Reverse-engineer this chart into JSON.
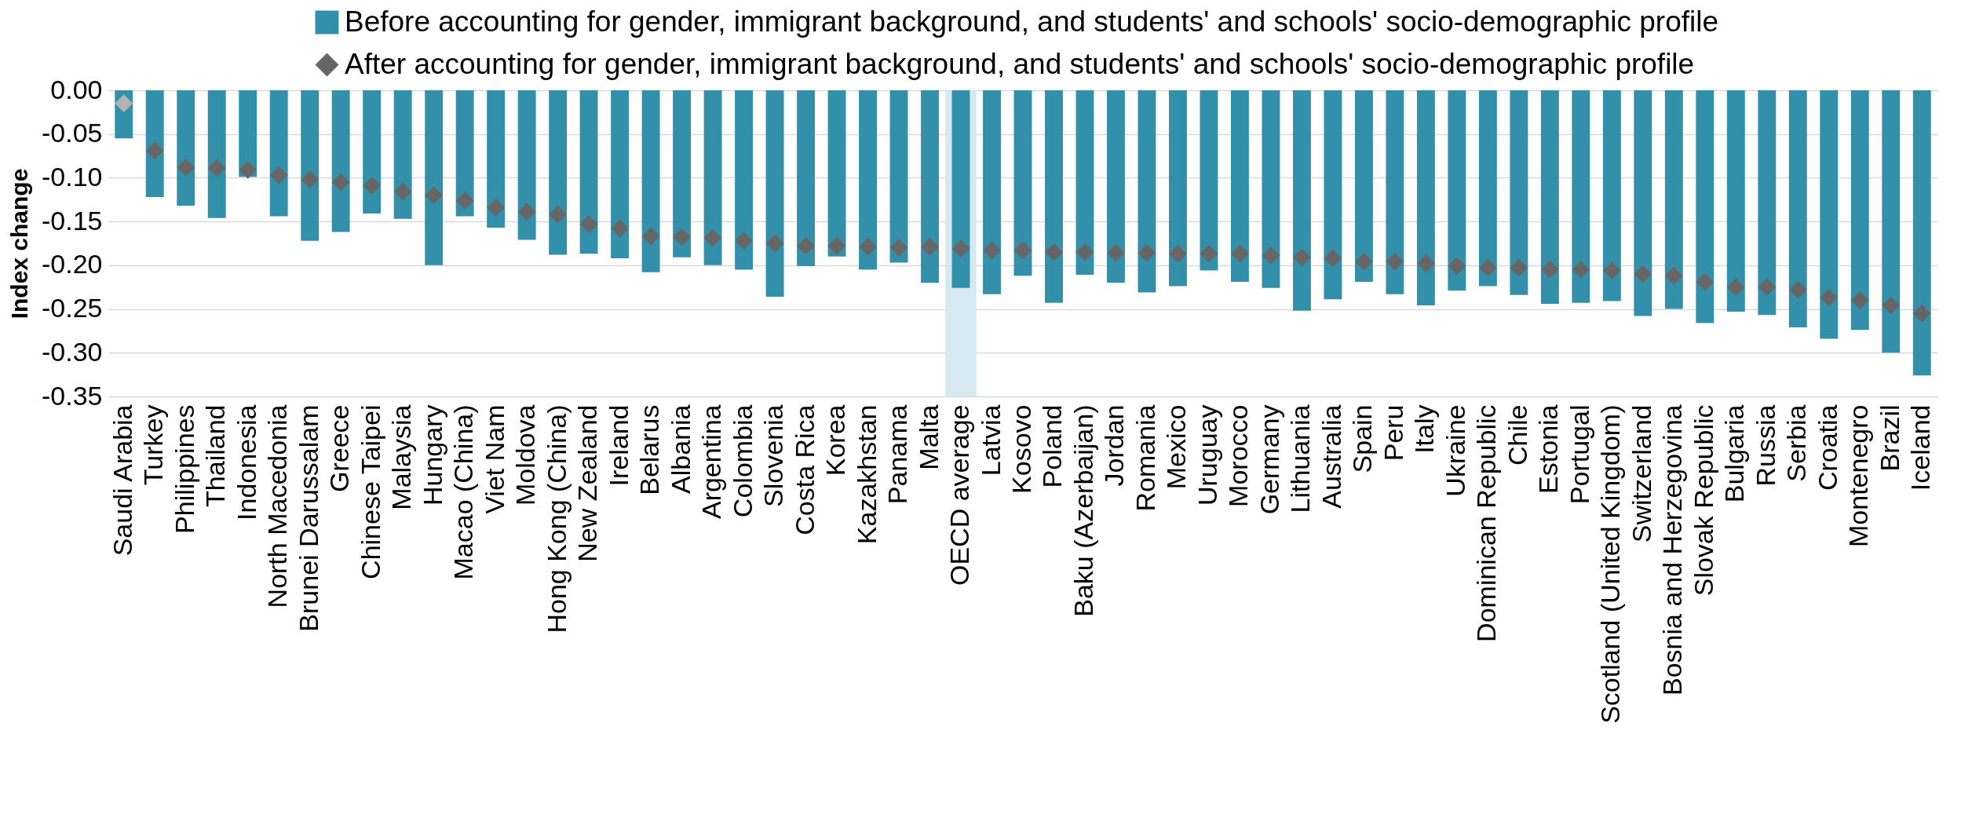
{
  "chart_data": {
    "type": "bar",
    "ylabel": "Index change",
    "categories": [
      "Saudi Arabia",
      "Turkey",
      "Philippines",
      "Thailand",
      "Indonesia",
      "North Macedonia",
      "Brunei Darussalam",
      "Greece",
      "Chinese Taipei",
      "Malaysia",
      "Hungary",
      "Macao (China)",
      "Viet Nam",
      "Moldova",
      "Hong Kong (China)",
      "New Zealand",
      "Ireland",
      "Belarus",
      "Albania",
      "Argentina",
      "Colombia",
      "Slovenia",
      "Costa Rica",
      "Korea",
      "Kazakhstan",
      "Panama",
      "Malta",
      "OECD average",
      "Latvia",
      "Kosovo",
      "Poland",
      "Baku (Azerbaijan)",
      "Jordan",
      "Romania",
      "Mexico",
      "Uruguay",
      "Morocco",
      "Germany",
      "Lithuania",
      "Australia",
      "Spain",
      "Peru",
      "Italy",
      "Ukraine",
      "Dominican Republic",
      "Chile",
      "Estonia",
      "Portugal",
      "Scotland (United Kingdom)",
      "Switzerland",
      "Bosnia and Herzegovina",
      "Slovak Republic",
      "Bulgaria",
      "Russia",
      "Serbia",
      "Croatia",
      "Montenegro",
      "Brazil",
      "Iceland"
    ],
    "series": [
      {
        "name": "Before accounting for gender, immigrant background, and students' and schools' socio-demographic profile",
        "color": "#3290ab",
        "values": [
          -0.055,
          -0.122,
          -0.132,
          -0.146,
          -0.099,
          -0.144,
          -0.172,
          -0.162,
          -0.141,
          -0.147,
          -0.2,
          -0.144,
          -0.157,
          -0.171,
          -0.188,
          -0.187,
          -0.192,
          -0.208,
          -0.191,
          -0.2,
          -0.205,
          -0.236,
          -0.201,
          -0.19,
          -0.205,
          -0.197,
          -0.22,
          -0.226,
          -0.233,
          -0.212,
          -0.243,
          -0.211,
          -0.22,
          -0.231,
          -0.224,
          -0.206,
          -0.219,
          -0.226,
          -0.252,
          -0.239,
          -0.219,
          -0.233,
          -0.246,
          -0.229,
          -0.224,
          -0.234,
          -0.244,
          -0.243,
          -0.241,
          -0.258,
          -0.25,
          -0.266,
          -0.253,
          -0.257,
          -0.271,
          -0.284,
          -0.274,
          -0.3,
          -0.326
        ]
      },
      {
        "name": "After accounting for gender, immigrant background, and students' and schools' socio-demographic profile",
        "type": "scatter",
        "marker": "diamond",
        "color": "#666666",
        "colors": [
          "#b3b3b3",
          "#666666",
          "#666666",
          "#666666",
          "#666666",
          "#666666",
          "#666666",
          "#666666",
          "#666666",
          "#666666",
          "#666666",
          "#666666",
          "#666666",
          "#666666",
          "#666666",
          "#666666",
          "#666666",
          "#666666",
          "#666666",
          "#666666",
          "#666666",
          "#666666",
          "#666666",
          "#666666",
          "#666666",
          "#666666",
          "#666666",
          "#666666",
          "#666666",
          "#666666",
          "#666666",
          "#666666",
          "#666666",
          "#666666",
          "#666666",
          "#666666",
          "#666666",
          "#666666",
          "#666666",
          "#666666",
          "#666666",
          "#666666",
          "#666666",
          "#666666",
          "#666666",
          "#666666",
          "#666666",
          "#666666",
          "#666666",
          "#666666",
          "#666666",
          "#666666",
          "#666666",
          "#666666",
          "#666666",
          "#666666",
          "#666666",
          "#666666",
          "#666666"
        ],
        "values": [
          -0.015,
          -0.069,
          -0.088,
          -0.089,
          -0.091,
          -0.097,
          -0.102,
          -0.105,
          -0.109,
          -0.116,
          -0.12,
          -0.126,
          -0.134,
          -0.139,
          -0.142,
          -0.153,
          -0.158,
          -0.167,
          -0.168,
          -0.169,
          -0.172,
          -0.175,
          -0.178,
          -0.178,
          -0.179,
          -0.18,
          -0.179,
          -0.181,
          -0.183,
          -0.183,
          -0.185,
          -0.185,
          -0.186,
          -0.186,
          -0.187,
          -0.187,
          -0.187,
          -0.189,
          -0.191,
          -0.192,
          -0.196,
          -0.196,
          -0.198,
          -0.201,
          -0.203,
          -0.203,
          -0.205,
          -0.205,
          -0.206,
          -0.21,
          -0.212,
          -0.219,
          -0.225,
          -0.225,
          -0.228,
          -0.237,
          -0.24,
          -0.246,
          -0.255
        ]
      }
    ],
    "ylim": [
      -0.35,
      0
    ],
    "yticks": [
      {
        "value": 0,
        "label": "0.00"
      },
      {
        "value": -0.05,
        "label": "-0.05"
      },
      {
        "value": -0.1,
        "label": "-0.10"
      },
      {
        "value": -0.15,
        "label": "-0.15"
      },
      {
        "value": -0.2,
        "label": "-0.20"
      },
      {
        "value": -0.25,
        "label": "-0.25"
      },
      {
        "value": -0.3,
        "label": "-0.30"
      },
      {
        "value": -0.35,
        "label": "-0.35"
      }
    ],
    "bands": [
      {
        "axis": "x",
        "from": "OECD average",
        "to": "OECD average",
        "color": "#d6e8f0"
      }
    ],
    "grid": "y",
    "legend": "top"
  }
}
